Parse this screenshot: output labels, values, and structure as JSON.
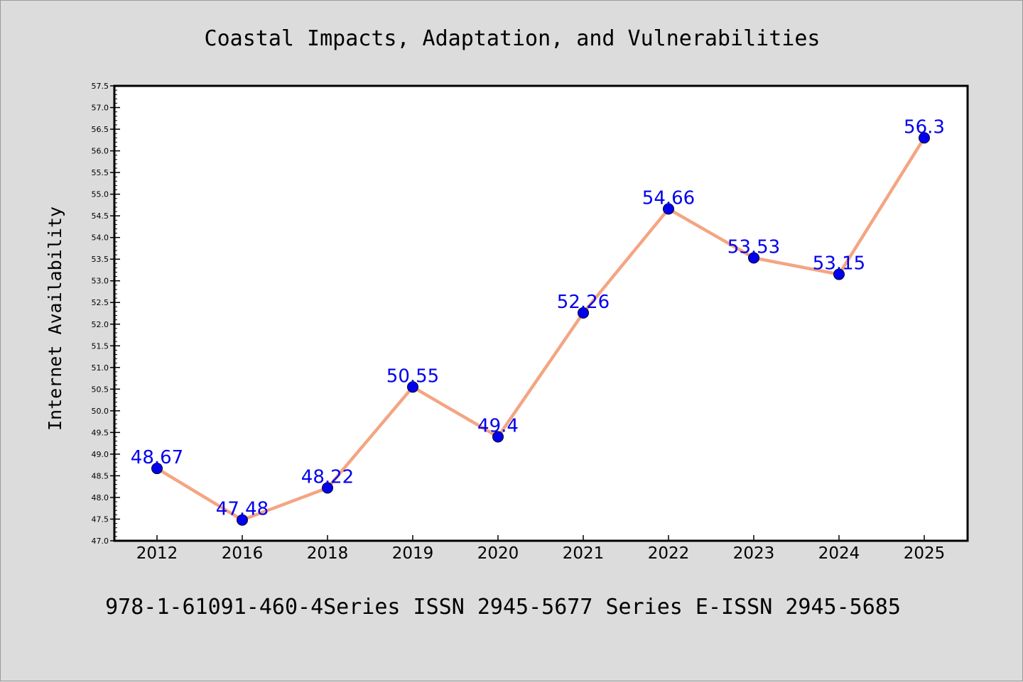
{
  "chart_data": {
    "type": "line",
    "title": "Coastal Impacts, Adaptation, and Vulnerabilities",
    "ylabel": "Internet Availability",
    "xlabel": "",
    "categories": [
      "2012",
      "2016",
      "2018",
      "2019",
      "2020",
      "2021",
      "2022",
      "2023",
      "2024",
      "2025"
    ],
    "series": [
      {
        "values": [
          48.67,
          47.48,
          48.22,
          50.55,
          49.4,
          52.26,
          54.66,
          53.53,
          53.15,
          56.3
        ],
        "data_labels": [
          "48.67",
          "47.48",
          "48.22",
          "50.55",
          "49.4",
          "52.26",
          "54.66",
          "53.53",
          "53.15",
          "56.3"
        ]
      }
    ],
    "ylim": [
      47.0,
      57.5
    ],
    "y_ticks": [
      "47.0",
      "47.5",
      "48.0",
      "48.5",
      "49.0",
      "49.5",
      "50.0",
      "50.5",
      "51.0",
      "51.5",
      "52.0",
      "52.5",
      "53.0",
      "53.5",
      "54.0",
      "54.5",
      "55.0",
      "55.5",
      "56.0",
      "56.5",
      "57.0",
      "57.5"
    ],
    "grid": false,
    "legend": "none",
    "colors": {
      "line": "#f4a582",
      "marker": "#0000ee",
      "label": "#0000ee",
      "background": "#dcdcdc",
      "plot_background": "#ffffff"
    },
    "footer": "978-1-61091-460-4Series ISSN 2945-5677 Series E-ISSN 2945-5685"
  }
}
